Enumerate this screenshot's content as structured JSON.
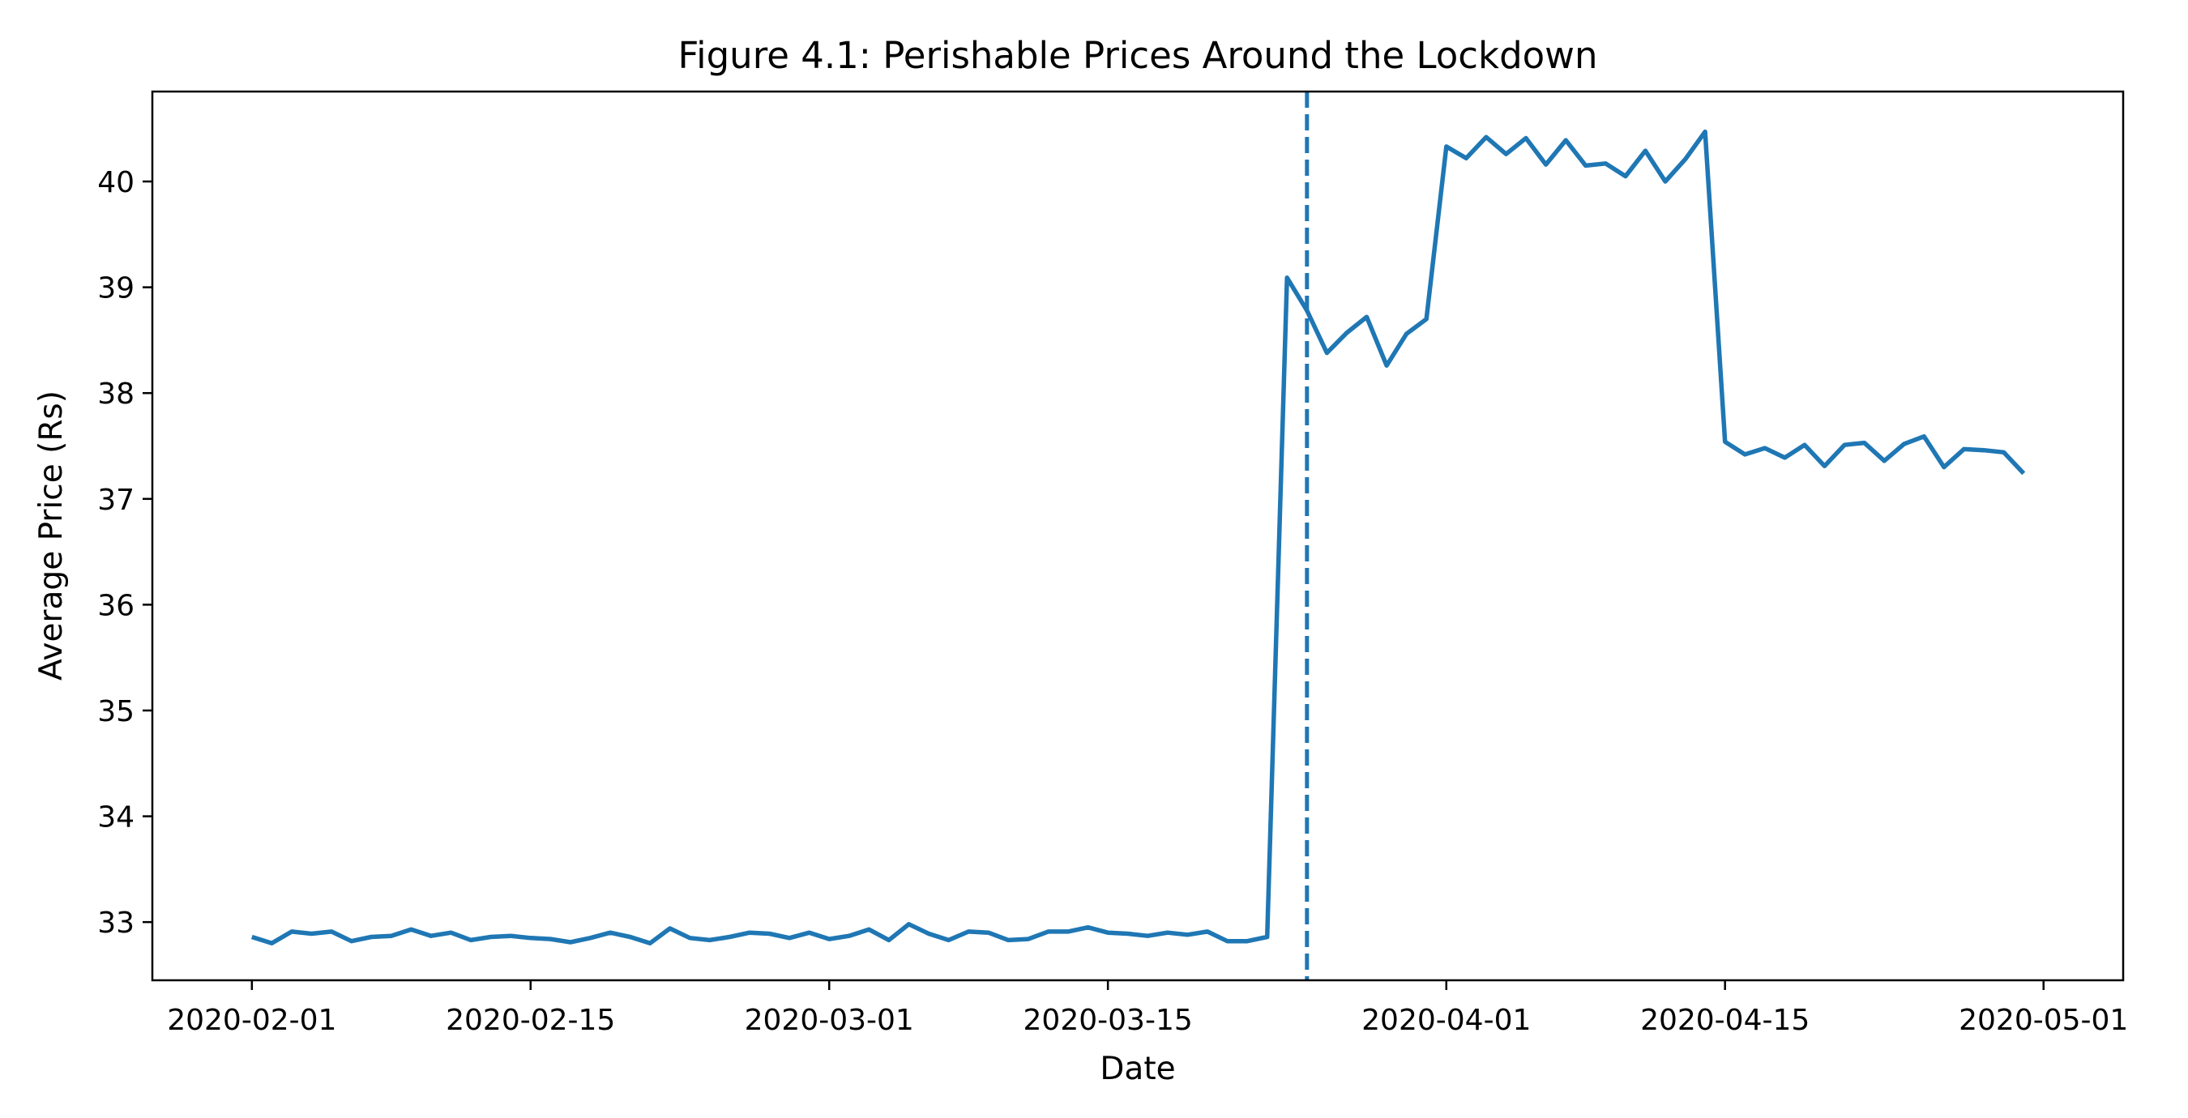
{
  "chart_data": {
    "type": "line",
    "title": "Figure 4.1: Perishable Prices Around the Lockdown",
    "xlabel": "Date",
    "ylabel": "Average Price (Rs)",
    "xlim": [
      "2020-01-27",
      "2020-05-05"
    ],
    "ylim": [
      32.45,
      40.85
    ],
    "x_ticks": [
      "2020-02-01",
      "2020-02-15",
      "2020-03-01",
      "2020-03-15",
      "2020-04-01",
      "2020-04-15",
      "2020-05-01"
    ],
    "y_ticks": [
      33,
      34,
      35,
      36,
      37,
      38,
      39,
      40
    ],
    "grid": false,
    "legend": "none",
    "line_color": "#1f77b4",
    "lockdown_marker": {
      "date": "2020-03-25",
      "style": "dashed",
      "color": "#1f77b4"
    },
    "series": [
      {
        "x": [
          "2020-02-01",
          "2020-02-02",
          "2020-02-03",
          "2020-02-04",
          "2020-02-05",
          "2020-02-06",
          "2020-02-07",
          "2020-02-08",
          "2020-02-09",
          "2020-02-10",
          "2020-02-11",
          "2020-02-12",
          "2020-02-13",
          "2020-02-14",
          "2020-02-15",
          "2020-02-16",
          "2020-02-17",
          "2020-02-18",
          "2020-02-19",
          "2020-02-20",
          "2020-02-21",
          "2020-02-22",
          "2020-02-23",
          "2020-02-24",
          "2020-02-25",
          "2020-02-26",
          "2020-02-27",
          "2020-02-28",
          "2020-02-29",
          "2020-03-01",
          "2020-03-02",
          "2020-03-03",
          "2020-03-04",
          "2020-03-05",
          "2020-03-06",
          "2020-03-07",
          "2020-03-08",
          "2020-03-09",
          "2020-03-10",
          "2020-03-11",
          "2020-03-12",
          "2020-03-13",
          "2020-03-14",
          "2020-03-15",
          "2020-03-16",
          "2020-03-17",
          "2020-03-18",
          "2020-03-19",
          "2020-03-20",
          "2020-03-21",
          "2020-03-22",
          "2020-03-23",
          "2020-03-24",
          "2020-03-25",
          "2020-03-26",
          "2020-03-27",
          "2020-03-28",
          "2020-03-29",
          "2020-03-30",
          "2020-03-31",
          "2020-04-01",
          "2020-04-02",
          "2020-04-03",
          "2020-04-04",
          "2020-04-05",
          "2020-04-06",
          "2020-04-07",
          "2020-04-08",
          "2020-04-09",
          "2020-04-10",
          "2020-04-11",
          "2020-04-12",
          "2020-04-13",
          "2020-04-14",
          "2020-04-15",
          "2020-04-16",
          "2020-04-17",
          "2020-04-18",
          "2020-04-19",
          "2020-04-20",
          "2020-04-21",
          "2020-04-22",
          "2020-04-23",
          "2020-04-24",
          "2020-04-25",
          "2020-04-26",
          "2020-04-27",
          "2020-04-28",
          "2020-04-29",
          "2020-04-30"
        ],
        "values": [
          32.86,
          32.8,
          32.91,
          32.89,
          32.91,
          32.82,
          32.86,
          32.87,
          32.93,
          32.87,
          32.9,
          32.83,
          32.86,
          32.87,
          32.85,
          32.84,
          32.81,
          32.85,
          32.9,
          32.86,
          32.8,
          32.94,
          32.85,
          32.83,
          32.86,
          32.9,
          32.89,
          32.85,
          32.9,
          32.84,
          32.87,
          32.93,
          32.83,
          32.98,
          32.89,
          32.83,
          32.91,
          32.9,
          32.83,
          32.84,
          32.91,
          32.91,
          32.95,
          32.9,
          32.89,
          32.87,
          32.9,
          32.88,
          32.91,
          32.82,
          32.82,
          32.86,
          39.09,
          38.78,
          38.38,
          38.57,
          38.72,
          38.26,
          38.56,
          38.7,
          40.33,
          40.22,
          40.42,
          40.26,
          40.41,
          40.16,
          40.39,
          40.15,
          40.17,
          40.05,
          40.29,
          40.0,
          40.21,
          40.47,
          37.54,
          37.42,
          37.48,
          37.39,
          37.51,
          37.31,
          37.51,
          37.53,
          37.36,
          37.52,
          37.59,
          37.3,
          37.47,
          37.46,
          37.44,
          37.24
        ]
      }
    ]
  }
}
